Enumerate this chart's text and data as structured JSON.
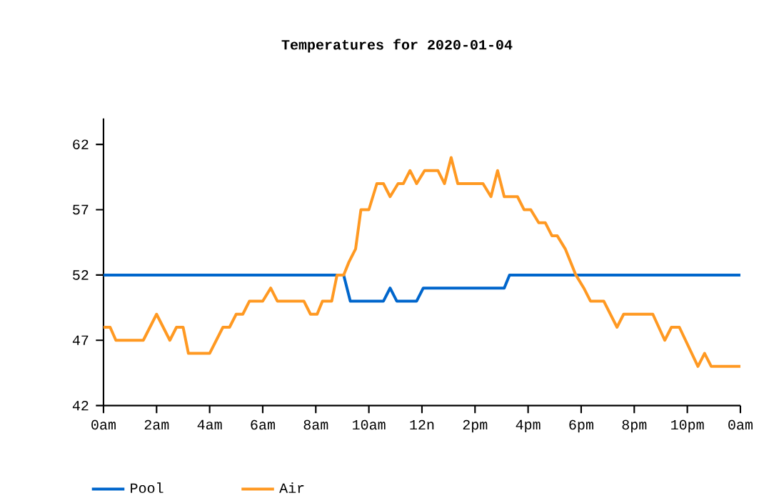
{
  "chart_data": {
    "type": "line",
    "title": "Temperatures for 2020-01-04",
    "xlim": [
      "2020-01-04T00:00",
      "2020-01-05T00:00"
    ],
    "ylim": [
      42,
      64
    ],
    "xticks": [
      {
        "value": "2020-01-04T00:00",
        "label": "0am"
      },
      {
        "value": "2020-01-04T02:00",
        "label": "2am"
      },
      {
        "value": "2020-01-04T04:00",
        "label": "4am"
      },
      {
        "value": "2020-01-04T06:00",
        "label": "6am"
      },
      {
        "value": "2020-01-04T08:00",
        "label": "8am"
      },
      {
        "value": "2020-01-04T10:00",
        "label": "10am"
      },
      {
        "value": "2020-01-04T12:00",
        "label": "12n"
      },
      {
        "value": "2020-01-04T14:00",
        "label": "2pm"
      },
      {
        "value": "2020-01-04T16:00",
        "label": "4pm"
      },
      {
        "value": "2020-01-04T18:00",
        "label": "6pm"
      },
      {
        "value": "2020-01-04T20:00",
        "label": "8pm"
      },
      {
        "value": "2020-01-04T22:00",
        "label": "10pm"
      },
      {
        "value": "2020-01-05T00:00",
        "label": "0am"
      }
    ],
    "yticks": [
      42,
      47,
      52,
      57,
      62
    ],
    "legend": "bottom",
    "marker": "none",
    "line_style": "solid",
    "series": [
      {
        "name": "Pool",
        "color": "#0066cc",
        "x": [
          "2020-01-04T00:00",
          "2020-01-04T08:45",
          "2020-01-04T09:03",
          "2020-01-04T09:18",
          "2020-01-04T10:33",
          "2020-01-04T10:48",
          "2020-01-04T11:03",
          "2020-01-04T11:48",
          "2020-01-04T12:03",
          "2020-01-04T15:06",
          "2020-01-04T15:18",
          "2020-01-05T00:00"
        ],
        "values": [
          52,
          52,
          52,
          50,
          50,
          51,
          50,
          50,
          51,
          51,
          52,
          52
        ]
      },
      {
        "name": "Air",
        "color": "#ff9922",
        "x": [
          "2020-01-04T00:00",
          "2020-01-04T00:15",
          "2020-01-04T00:28",
          "2020-01-04T01:30",
          "2020-01-04T02:00",
          "2020-01-04T02:30",
          "2020-01-04T02:45",
          "2020-01-04T03:00",
          "2020-01-04T03:12",
          "2020-01-04T04:00",
          "2020-01-04T04:30",
          "2020-01-04T04:45",
          "2020-01-04T05:00",
          "2020-01-04T05:15",
          "2020-01-04T05:30",
          "2020-01-04T06:00",
          "2020-01-04T06:18",
          "2020-01-04T06:33",
          "2020-01-04T07:33",
          "2020-01-04T07:48",
          "2020-01-04T08:03",
          "2020-01-04T08:15",
          "2020-01-04T08:36",
          "2020-01-04T08:48",
          "2020-01-04T09:03",
          "2020-01-04T09:15",
          "2020-01-04T09:30",
          "2020-01-04T09:42",
          "2020-01-04T10:00",
          "2020-01-04T10:18",
          "2020-01-04T10:33",
          "2020-01-04T10:48",
          "2020-01-04T11:06",
          "2020-01-04T11:18",
          "2020-01-04T11:33",
          "2020-01-04T11:48",
          "2020-01-04T12:06",
          "2020-01-04T12:36",
          "2020-01-04T12:51",
          "2020-01-04T13:06",
          "2020-01-04T13:21",
          "2020-01-04T14:18",
          "2020-01-04T14:36",
          "2020-01-04T14:51",
          "2020-01-04T15:06",
          "2020-01-04T15:36",
          "2020-01-04T15:51",
          "2020-01-04T16:06",
          "2020-01-04T16:24",
          "2020-01-04T16:39",
          "2020-01-04T16:54",
          "2020-01-04T17:06",
          "2020-01-04T17:24",
          "2020-01-04T17:36",
          "2020-01-04T17:48",
          "2020-01-04T18:06",
          "2020-01-04T18:21",
          "2020-01-04T18:51",
          "2020-01-04T19:21",
          "2020-01-04T19:36",
          "2020-01-04T20:42",
          "2020-01-04T21:09",
          "2020-01-04T21:24",
          "2020-01-04T21:42",
          "2020-01-04T22:24",
          "2020-01-04T22:39",
          "2020-01-04T22:54",
          "2020-01-05T00:00"
        ],
        "values": [
          48,
          48,
          47,
          47,
          49,
          47,
          48,
          48,
          46,
          46,
          48,
          48,
          49,
          49,
          50,
          50,
          51,
          50,
          50,
          49,
          49,
          50,
          50,
          52,
          52,
          53,
          54,
          57,
          57,
          59,
          59,
          58,
          59,
          59,
          60,
          59,
          60,
          60,
          59,
          61,
          59,
          59,
          58,
          60,
          58,
          58,
          57,
          57,
          56,
          56,
          55,
          55,
          54,
          53,
          52,
          51,
          50,
          50,
          48,
          49,
          49,
          47,
          48,
          48,
          45,
          46,
          45,
          45
        ]
      }
    ]
  }
}
